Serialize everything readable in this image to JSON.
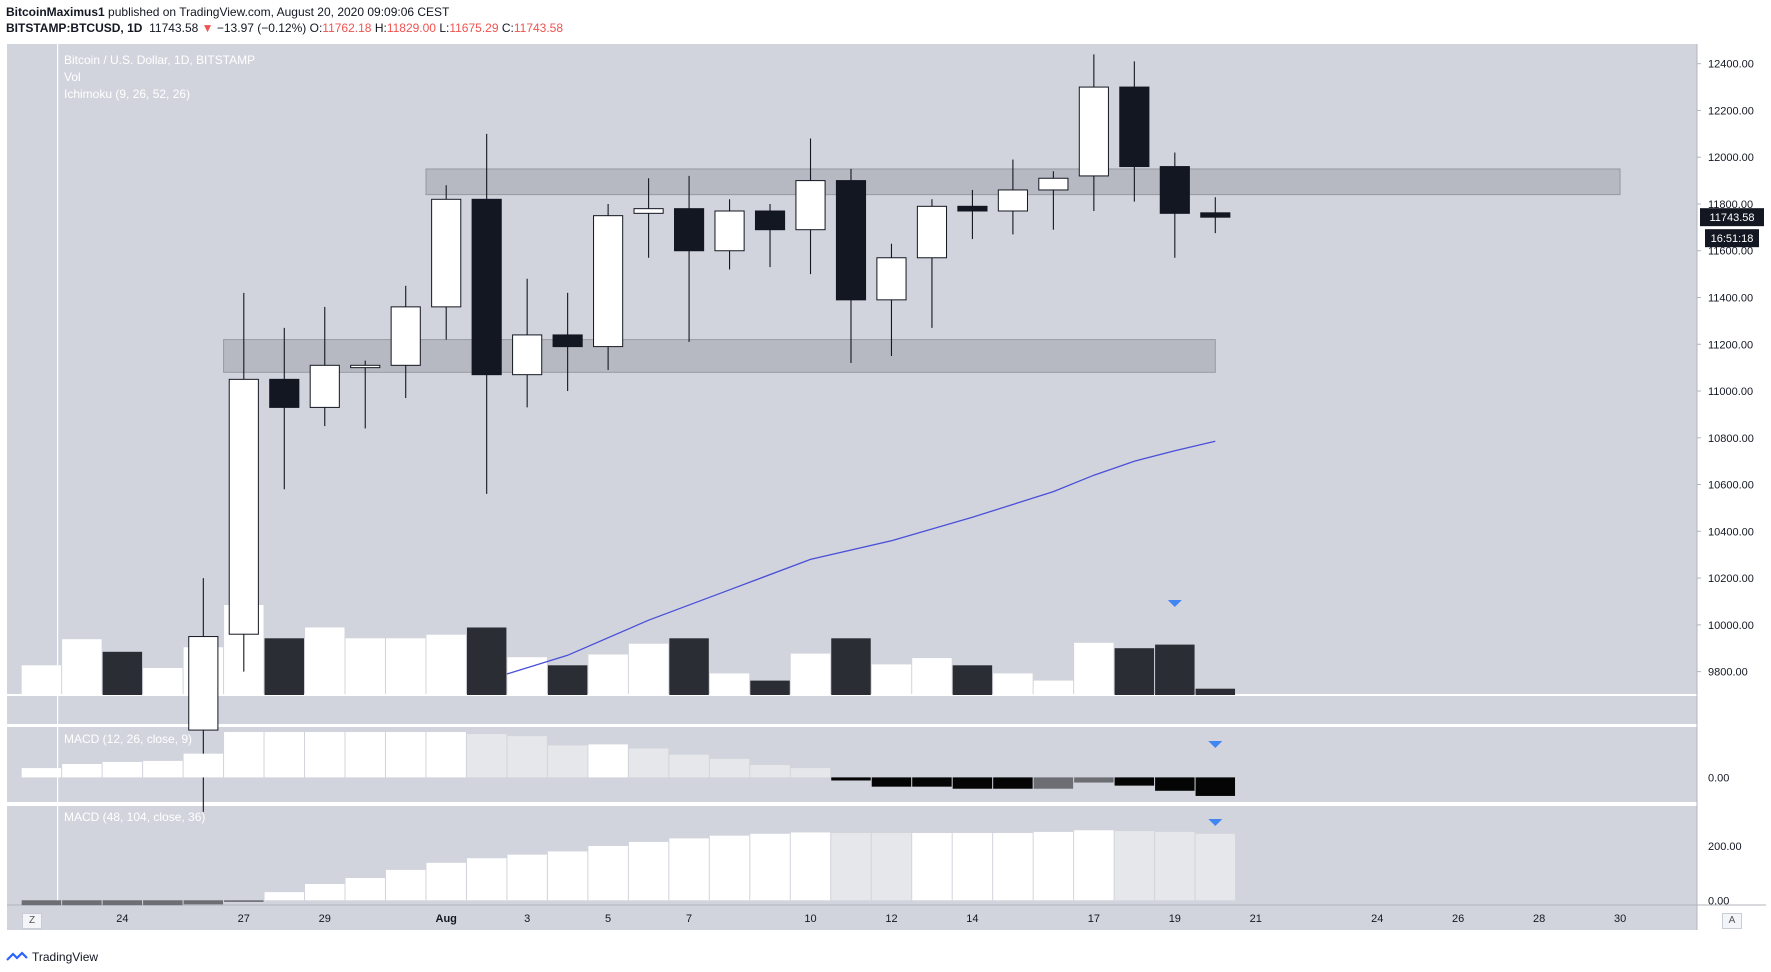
{
  "header": {
    "author": "BitcoinMaximus1",
    "published_text": "published on TradingView.com, August 20, 2020 09:09:06 CEST",
    "symbol": "BITSTAMP:BTCUSD, 1D",
    "last_price": "11743.58",
    "change": "−13.97 (−0.12%)",
    "o_label": "O:",
    "o_value": "11762.18",
    "h_label": "H:",
    "h_value": "11829.00",
    "l_label": "L:",
    "l_value": "11675.29",
    "c_label": "C:",
    "c_value": "11743.58"
  },
  "legend": {
    "title": "Bitcoin / U.S. Dollar, 1D, BITSTAMP",
    "vol": "Vol",
    "ichimoku": "Ichimoku (9, 26, 52, 26)",
    "macd1": "MACD (12, 26, close, 9)",
    "macd2": "MACD (48, 104, close, 36)"
  },
  "price_badges": {
    "last": "11743.58",
    "countdown": "16:51:18"
  },
  "footer": {
    "brand": "TradingView",
    "btn_z": "Z",
    "btn_a": "A"
  },
  "colors": {
    "bg": "#d1d4dc",
    "bull": "#ffffff",
    "bear": "#131722",
    "zone": "#a9abb2",
    "line": "#4a50d8",
    "arrow": "#4285f4",
    "macd_light": "#e6e7ea"
  },
  "chart_data": {
    "type": "candlestick",
    "title": "Bitcoin / U.S. Dollar, 1D, BITSTAMP",
    "ylim": [
      9700,
      12450
    ],
    "y_ticks": [
      9800,
      10000,
      10200,
      10400,
      10600,
      10800,
      11000,
      11200,
      11400,
      11600,
      11800,
      12000,
      12200,
      12400
    ],
    "x_tick_labels": [
      "24",
      "27",
      "29",
      "Aug",
      "3",
      "5",
      "7",
      "10",
      "12",
      "14",
      "17",
      "19",
      "21",
      "24",
      "26",
      "28",
      "30"
    ],
    "x_tick_days": [
      -7,
      -4,
      -2,
      1,
      3,
      5,
      7,
      10,
      12,
      14,
      17,
      19,
      21,
      24,
      26,
      28,
      30
    ],
    "day_range": [
      -9.85,
      31.9
    ],
    "candles": [
      {
        "day": -5,
        "o": 9550,
        "h": 10200,
        "l": 9200,
        "c": 9950
      },
      {
        "day": -4,
        "o": 9960,
        "h": 11420,
        "l": 9800,
        "c": 11050
      },
      {
        "day": -3,
        "o": 11050,
        "h": 11270,
        "l": 10580,
        "c": 10930
      },
      {
        "day": -2,
        "o": 10930,
        "h": 11360,
        "l": 10850,
        "c": 11110
      },
      {
        "day": -1,
        "o": 11100,
        "h": 11130,
        "l": 10840,
        "c": 11110
      },
      {
        "day": 0,
        "o": 11110,
        "h": 11450,
        "l": 10970,
        "c": 11360
      },
      {
        "day": 1,
        "o": 11360,
        "h": 11880,
        "l": 11220,
        "c": 11820
      },
      {
        "day": 2,
        "o": 11820,
        "h": 12100,
        "l": 10560,
        "c": 11070
      },
      {
        "day": 3,
        "o": 11070,
        "h": 11480,
        "l": 10930,
        "c": 11240
      },
      {
        "day": 4,
        "o": 11240,
        "h": 11420,
        "l": 11000,
        "c": 11190
      },
      {
        "day": 5,
        "o": 11190,
        "h": 11800,
        "l": 11090,
        "c": 11750
      },
      {
        "day": 6,
        "o": 11760,
        "h": 11910,
        "l": 11570,
        "c": 11780
      },
      {
        "day": 7,
        "o": 11780,
        "h": 11920,
        "l": 11210,
        "c": 11600
      },
      {
        "day": 8,
        "o": 11600,
        "h": 11820,
        "l": 11520,
        "c": 11770
      },
      {
        "day": 9,
        "o": 11770,
        "h": 11800,
        "l": 11530,
        "c": 11690
      },
      {
        "day": 10,
        "o": 11690,
        "h": 12080,
        "l": 11500,
        "c": 11900
      },
      {
        "day": 11,
        "o": 11900,
        "h": 11950,
        "l": 11120,
        "c": 11390
      },
      {
        "day": 12,
        "o": 11390,
        "h": 11630,
        "l": 11150,
        "c": 11570
      },
      {
        "day": 13,
        "o": 11570,
        "h": 11820,
        "l": 11270,
        "c": 11790
      },
      {
        "day": 14,
        "o": 11790,
        "h": 11860,
        "l": 11650,
        "c": 11770
      },
      {
        "day": 15,
        "o": 11770,
        "h": 11990,
        "l": 11670,
        "c": 11860
      },
      {
        "day": 16,
        "o": 11860,
        "h": 11940,
        "l": 11690,
        "c": 11910
      },
      {
        "day": 17,
        "o": 11920,
        "h": 12440,
        "l": 11770,
        "c": 12300
      },
      {
        "day": 18,
        "o": 12300,
        "h": 12410,
        "l": 11810,
        "c": 11960
      },
      {
        "day": 19,
        "o": 11960,
        "h": 12020,
        "l": 11570,
        "c": 11760
      },
      {
        "day": 20,
        "o": 11762.18,
        "h": 11829,
        "l": 11675.29,
        "c": 11743.58
      }
    ],
    "zones": [
      {
        "day_start": 1,
        "day_end": 30,
        "low": 11840,
        "high": 11950
      },
      {
        "day_start": -4,
        "day_end": 20,
        "low": 11080,
        "high": 11220
      }
    ],
    "ichimoku_line": [
      {
        "day": 2.5,
        "v": 9790
      },
      {
        "day": 4,
        "v": 9870
      },
      {
        "day": 6,
        "v": 10020
      },
      {
        "day": 8,
        "v": 10150
      },
      {
        "day": 10,
        "v": 10280
      },
      {
        "day": 12,
        "v": 10360
      },
      {
        "day": 14,
        "v": 10460
      },
      {
        "day": 16,
        "v": 10570
      },
      {
        "day": 17,
        "v": 10640
      },
      {
        "day": 18,
        "v": 10700
      },
      {
        "day": 19,
        "v": 10745
      },
      {
        "day": 20,
        "v": 10785
      }
    ],
    "volume": {
      "max": 100,
      "bars": [
        {
          "day": -9,
          "v": 33,
          "bear": false
        },
        {
          "day": -8,
          "v": 62,
          "bear": false
        },
        {
          "day": -7,
          "v": 48,
          "bear": true
        },
        {
          "day": -6,
          "v": 30,
          "bear": false
        },
        {
          "day": -5,
          "v": 53,
          "bear": false
        },
        {
          "day": -4,
          "v": 100,
          "bear": false
        },
        {
          "day": -3,
          "v": 63,
          "bear": true
        },
        {
          "day": -2,
          "v": 75,
          "bear": false
        },
        {
          "day": -1,
          "v": 63,
          "bear": false
        },
        {
          "day": 0,
          "v": 63,
          "bear": false
        },
        {
          "day": 1,
          "v": 67,
          "bear": false
        },
        {
          "day": 2,
          "v": 75,
          "bear": true
        },
        {
          "day": 3,
          "v": 42,
          "bear": false
        },
        {
          "day": 4,
          "v": 33,
          "bear": true
        },
        {
          "day": 5,
          "v": 45,
          "bear": false
        },
        {
          "day": 6,
          "v": 57,
          "bear": false
        },
        {
          "day": 7,
          "v": 63,
          "bear": true
        },
        {
          "day": 8,
          "v": 24,
          "bear": false
        },
        {
          "day": 9,
          "v": 16,
          "bear": true
        },
        {
          "day": 10,
          "v": 46,
          "bear": false
        },
        {
          "day": 11,
          "v": 63,
          "bear": true
        },
        {
          "day": 12,
          "v": 34,
          "bear": false
        },
        {
          "day": 13,
          "v": 41,
          "bear": false
        },
        {
          "day": 14,
          "v": 33,
          "bear": true
        },
        {
          "day": 15,
          "v": 24,
          "bear": false
        },
        {
          "day": 16,
          "v": 16,
          "bear": false
        },
        {
          "day": 17,
          "v": 58,
          "bear": false
        },
        {
          "day": 18,
          "v": 52,
          "bear": true
        },
        {
          "day": 19,
          "v": 56,
          "bear": true
        },
        {
          "day": 20,
          "v": 7,
          "bear": true
        }
      ]
    },
    "macd1": {
      "zero_label": "0.00",
      "range": [
        -20,
        45
      ],
      "bars": [
        {
          "day": -9,
          "v": 9,
          "shade": "white"
        },
        {
          "day": -8,
          "v": 13,
          "shade": "white"
        },
        {
          "day": -7,
          "v": 15,
          "shade": "white"
        },
        {
          "day": -6,
          "v": 16,
          "shade": "white"
        },
        {
          "day": -5,
          "v": 23,
          "shade": "white"
        },
        {
          "day": -4,
          "v": 44,
          "shade": "white"
        },
        {
          "day": -3,
          "v": 44,
          "shade": "white"
        },
        {
          "day": -2,
          "v": 44,
          "shade": "white"
        },
        {
          "day": -1,
          "v": 44,
          "shade": "white"
        },
        {
          "day": 0,
          "v": 44,
          "shade": "white"
        },
        {
          "day": 1,
          "v": 44,
          "shade": "white"
        },
        {
          "day": 2,
          "v": 42,
          "shade": "light"
        },
        {
          "day": 3,
          "v": 40,
          "shade": "light"
        },
        {
          "day": 4,
          "v": 31,
          "shade": "light"
        },
        {
          "day": 5,
          "v": 32,
          "shade": "white"
        },
        {
          "day": 6,
          "v": 28,
          "shade": "light"
        },
        {
          "day": 7,
          "v": 22,
          "shade": "light"
        },
        {
          "day": 8,
          "v": 18,
          "shade": "light"
        },
        {
          "day": 9,
          "v": 12,
          "shade": "light"
        },
        {
          "day": 10,
          "v": 9,
          "shade": "light"
        },
        {
          "day": 11,
          "v": -3,
          "shade": "black"
        },
        {
          "day": 12,
          "v": -9,
          "shade": "black"
        },
        {
          "day": 13,
          "v": -9,
          "shade": "black"
        },
        {
          "day": 14,
          "v": -11,
          "shade": "black"
        },
        {
          "day": 15,
          "v": -11,
          "shade": "black"
        },
        {
          "day": 16,
          "v": -11,
          "shade": "gray"
        },
        {
          "day": 17,
          "v": -5,
          "shade": "gray"
        },
        {
          "day": 18,
          "v": -8,
          "shade": "black"
        },
        {
          "day": 19,
          "v": -13,
          "shade": "black"
        },
        {
          "day": 20,
          "v": -18,
          "shade": "black"
        }
      ]
    },
    "macd2": {
      "ticks": [
        0,
        200
      ],
      "tick_labels": [
        "0.00",
        "200.00"
      ],
      "range": [
        -10,
        340
      ],
      "bars": [
        {
          "day": -9,
          "v": -18,
          "shade": "gray"
        },
        {
          "day": -8,
          "v": -18,
          "shade": "gray"
        },
        {
          "day": -7,
          "v": -18,
          "shade": "gray"
        },
        {
          "day": -6,
          "v": -18,
          "shade": "gray"
        },
        {
          "day": -5,
          "v": -15,
          "shade": "gray"
        },
        {
          "day": -4,
          "v": -6,
          "shade": "gray"
        },
        {
          "day": -3,
          "v": 30,
          "shade": "white"
        },
        {
          "day": -2,
          "v": 60,
          "shade": "white"
        },
        {
          "day": -1,
          "v": 82,
          "shade": "white"
        },
        {
          "day": 0,
          "v": 112,
          "shade": "white"
        },
        {
          "day": 1,
          "v": 138,
          "shade": "white"
        },
        {
          "day": 2,
          "v": 155,
          "shade": "white"
        },
        {
          "day": 3,
          "v": 168,
          "shade": "white"
        },
        {
          "day": 4,
          "v": 180,
          "shade": "white"
        },
        {
          "day": 5,
          "v": 200,
          "shade": "white"
        },
        {
          "day": 6,
          "v": 215,
          "shade": "white"
        },
        {
          "day": 7,
          "v": 228,
          "shade": "white"
        },
        {
          "day": 8,
          "v": 238,
          "shade": "white"
        },
        {
          "day": 9,
          "v": 245,
          "shade": "white"
        },
        {
          "day": 10,
          "v": 250,
          "shade": "white"
        },
        {
          "day": 11,
          "v": 248,
          "shade": "light"
        },
        {
          "day": 12,
          "v": 248,
          "shade": "light"
        },
        {
          "day": 13,
          "v": 248,
          "shade": "white"
        },
        {
          "day": 14,
          "v": 248,
          "shade": "white"
        },
        {
          "day": 15,
          "v": 248,
          "shade": "white"
        },
        {
          "day": 16,
          "v": 252,
          "shade": "white"
        },
        {
          "day": 17,
          "v": 258,
          "shade": "white"
        },
        {
          "day": 18,
          "v": 255,
          "shade": "light"
        },
        {
          "day": 19,
          "v": 252,
          "shade": "light"
        },
        {
          "day": 20,
          "v": 245,
          "shade": "light"
        }
      ]
    },
    "markers": [
      {
        "pane": "volume",
        "day": 19
      },
      {
        "pane": "macd1",
        "day": 20
      },
      {
        "pane": "macd2",
        "day": 20
      }
    ]
  }
}
